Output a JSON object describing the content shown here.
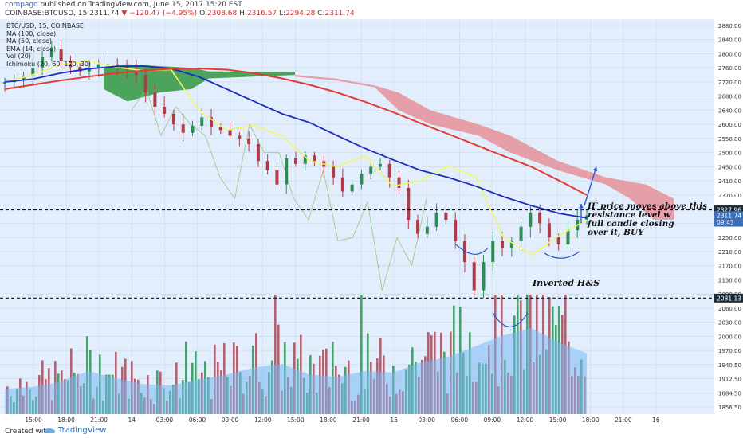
{
  "header": {
    "author": "compago",
    "published": "published on TradingView.com, June 15, 2017 15:20 EST",
    "symbol_line": "COINBASE:BTCUSD, 15",
    "last": "2311.74",
    "change": "−120.47 (−4.95%)",
    "o_label": "O:",
    "o": "2308.68",
    "h_label": "H:",
    "h": "2316.57",
    "l_label": "L:",
    "l": "2294.28",
    "c_label": "C:",
    "c": "2311.74"
  },
  "legend": {
    "title": "BTC/USD, 15, COINBASE",
    "items": [
      "MA (100, close)",
      "MA (50, close)",
      "EMA (14, close)",
      "Vol (20)",
      "Ichimoku (20, 60, 120, 30)"
    ]
  },
  "annotations": {
    "pattern": "Inverted H&S",
    "call_line1": "IF price moves above this",
    "call_line2": "resistance level w",
    "call_line3": "full candle closing",
    "call_line4": "over it, BUY"
  },
  "footer": {
    "created": "Created with",
    "brand": "TradingView"
  },
  "colors": {
    "background": "#e3eefc",
    "ma100": "#e53935",
    "ma50": "#1a2bbd",
    "ema14": "#f4f46a",
    "cloud_bear": "#e68a92",
    "cloud_bull": "#3b9b4a",
    "candle_up": "#2e8b57",
    "candle_down": "#b03a48",
    "annotation": "#2b57d6"
  },
  "chart_data": {
    "type": "candlestick",
    "title": "BTC/USD, 15, COINBASE",
    "y_axis": {
      "ticks": [
        1856.5,
        1884.5,
        1912.5,
        1940.5,
        1970,
        2000,
        2030,
        2060,
        2090,
        2130,
        2170,
        2210,
        2250,
        2290,
        2330,
        2370,
        2410,
        2450,
        2500,
        2550,
        2600,
        2640,
        2680,
        2720,
        2760,
        2800,
        2840,
        2880
      ],
      "tick_labels": [
        "1856.50",
        "1884.50",
        "1912.50",
        "1940.50",
        "1970.00",
        "2000.00",
        "2030.00",
        "2060.00",
        "2090.00",
        "2130.00",
        "2170.00",
        "2210.00",
        "2250.00",
        "2290.00",
        "2330.00",
        "2370.00",
        "2410.00",
        "2450.00",
        "2500.00",
        "2550.00",
        "2600.00",
        "2640.00",
        "2680.00",
        "2720.00",
        "2760.00",
        "2800.00",
        "2840.00",
        "2880.00"
      ],
      "price_tags": [
        {
          "label": "2327.96",
          "value": 2327.96,
          "style": "dark"
        },
        {
          "label": "2311.74",
          "value": 2311.74,
          "style": "blue"
        },
        {
          "label": "09:43",
          "value": 2293,
          "style": "blue"
        },
        {
          "label": "2081.13",
          "value": 2081.13,
          "style": "dark"
        }
      ]
    },
    "x_axis": {
      "tick_labels": [
        "15:00",
        "18:00",
        "21:00",
        "14",
        "03:00",
        "06:00",
        "09:00",
        "12:00",
        "15:00",
        "18:00",
        "21:00",
        "15",
        "03:00",
        "06:00",
        "09:00",
        "12:00",
        "15:00",
        "18:00",
        "21:00",
        "16"
      ]
    },
    "horizontal_levels": [
      2327.96,
      2081.13
    ],
    "series": [
      {
        "name": "MA (100, close)",
        "values": [
          2700,
          2712,
          2724,
          2735,
          2745,
          2752,
          2757,
          2758,
          2755,
          2745,
          2730,
          2712,
          2690,
          2664,
          2635,
          2603,
          2566,
          2527,
          2488,
          2450,
          2411,
          2370
        ]
      },
      {
        "name": "MA (50, close)",
        "values": [
          2720,
          2728,
          2745,
          2757,
          2764,
          2765,
          2758,
          2735,
          2700,
          2665,
          2630,
          2605,
          2560,
          2515,
          2475,
          2440,
          2420,
          2395,
          2365,
          2340,
          2318,
          2305
        ]
      },
      {
        "name": "EMA (14, close)",
        "values": [
          2720,
          2740,
          2768,
          2780,
          2762,
          2752,
          2755,
          2640,
          2580,
          2595,
          2560,
          2470,
          2450,
          2488,
          2395,
          2410,
          2455,
          2420,
          2250,
          2200,
          2255,
          2300
        ]
      },
      {
        "name": "Vol (20)",
        "values": [
          35,
          38,
          45,
          60,
          50,
          42,
          40,
          48,
          55,
          65,
          70,
          55,
          52,
          60,
          58,
          72,
          80,
          95,
          110,
          120,
          100,
          85
        ]
      }
    ],
    "candles_close": [
      2720,
      2725,
      2738,
      2760,
      2790,
      2812,
      2780,
      2762,
      2750,
      2760,
      2770,
      2770,
      2762,
      2755,
      2740,
      2690,
      2650,
      2630,
      2600,
      2570,
      2595,
      2620,
      2590,
      2580,
      2560,
      2550,
      2530,
      2470,
      2440,
      2400,
      2480,
      2460,
      2490,
      2470,
      2450,
      2420,
      2380,
      2400,
      2430,
      2450,
      2460,
      2420,
      2390,
      2300,
      2260,
      2280,
      2320,
      2300,
      2240,
      2180,
      2100,
      2180,
      2240,
      2220,
      2240,
      2280,
      2320,
      2290,
      2250,
      2230,
      2270,
      2300,
      2311.74
    ]
  }
}
